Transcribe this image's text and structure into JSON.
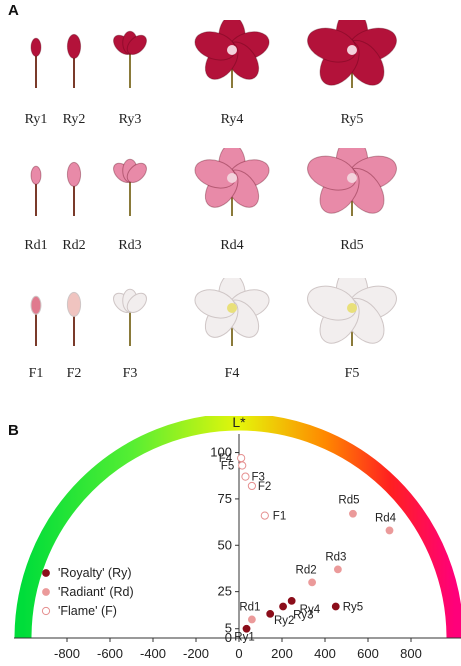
{
  "panels": {
    "a": "A",
    "b": "B"
  },
  "photo_labels": {
    "royalty": [
      "Ry1",
      "Ry2",
      "Ry3",
      "Ry4",
      "Ry5"
    ],
    "radiant": [
      "Rd1",
      "Rd2",
      "Rd3",
      "Rd4",
      "Rd5"
    ],
    "flame": [
      "F1",
      "F2",
      "F3",
      "F4",
      "F5"
    ]
  },
  "flower_colors": {
    "royalty": "#b3123a",
    "radiant": "#e88aa8",
    "flame": "#f2eeee"
  },
  "chart_data": {
    "type": "scatter",
    "title": "L*",
    "xlim": [
      -900,
      900
    ],
    "ylim": [
      0,
      110
    ],
    "xticks": [
      "-800",
      "-600",
      "-400",
      "-200",
      "0",
      "200",
      "400",
      "600",
      "800"
    ],
    "xtick_values": [
      -800,
      -600,
      -400,
      -200,
      0,
      200,
      400,
      600,
      800
    ],
    "yticks": [
      "0",
      "5",
      "25",
      "50",
      "75",
      "100"
    ],
    "ytick_values": [
      0,
      5,
      25,
      50,
      75,
      100
    ],
    "legend_position": "left",
    "series": [
      {
        "name": "'Royalty' (Ry)",
        "color": "#8b0d1a",
        "style": "filled",
        "labels": [
          "Ry1",
          "Ry2",
          "Ry3",
          "Ry4",
          "Ry5"
        ],
        "x": [
          35,
          145,
          205,
          245,
          450
        ],
        "y": [
          5,
          13,
          17,
          20,
          17
        ]
      },
      {
        "name": "'Radiant' (Rd)",
        "color": "#eb9a9a",
        "style": "filled",
        "labels": [
          "Rd1",
          "Rd2",
          "Rd3",
          "Rd4",
          "Rd5"
        ],
        "x": [
          60,
          340,
          460,
          700,
          530
        ],
        "y": [
          10,
          30,
          37,
          58,
          67
        ]
      },
      {
        "name": "'Flame' (F)",
        "color": "#e58f8f",
        "style": "open",
        "labels": [
          "F1",
          "F2",
          "F3",
          "F4",
          "F5"
        ],
        "x": [
          120,
          60,
          30,
          10,
          15
        ],
        "y": [
          66,
          82,
          87,
          97,
          93
        ]
      }
    ]
  }
}
